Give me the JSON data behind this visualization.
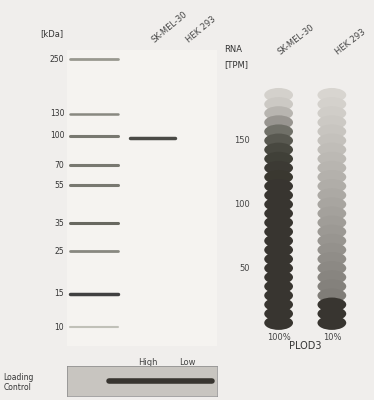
{
  "bg_color": "#f0eeec",
  "wb_bg": "#f5f3f0",
  "ladder_marks": [
    250,
    130,
    100,
    70,
    55,
    35,
    25,
    15,
    10
  ],
  "ladder_mark_colors": [
    "#999990",
    "#888880",
    "#787870",
    "#787870",
    "#787870",
    "#686860",
    "#888880",
    "#404040",
    "#c0c0b8"
  ],
  "ladder_mark_lw": [
    2.0,
    1.8,
    2.2,
    2.2,
    2.2,
    2.2,
    2.0,
    2.5,
    1.5
  ],
  "sample_labels": [
    "SK-MEL-30",
    "HEK 293"
  ],
  "kda_label": "[kDa]",
  "high_low_labels": [
    "High",
    "Low"
  ],
  "loading_control_label": [
    "Loading",
    "Control"
  ],
  "rna_label": [
    "RNA",
    "[TPM]"
  ],
  "rna_col1_label": "SK-MEL-30",
  "rna_col2_label": "HEK 293",
  "rna_pct1": "100%",
  "rna_pct2": "10%",
  "gene_label": "PLOD3",
  "rna_yticks": [
    50,
    100,
    150
  ],
  "rna_n_beads": 26,
  "col1_colors": [
    "#d4d1cc",
    "#ccc9c4",
    "#b8b5b0",
    "#989590",
    "#707068",
    "#585850",
    "#484840",
    "#404038",
    "#3c3a34",
    "#3a3830",
    "#383530",
    "#383530",
    "#383530",
    "#383530",
    "#383530",
    "#383530",
    "#383530",
    "#383530",
    "#383530",
    "#383530",
    "#383530",
    "#383530",
    "#383530",
    "#383530",
    "#383530",
    "#383530"
  ],
  "col2_colors": [
    "#d8d5d0",
    "#d4d1cc",
    "#d0cdc8",
    "#ccc9c4",
    "#c8c5c0",
    "#c4c1bc",
    "#c0bdb8",
    "#bcb9b4",
    "#b8b5b0",
    "#b4b1ac",
    "#b0ada8",
    "#aca9a4",
    "#a8a5a0",
    "#a4a19c",
    "#a09d98",
    "#9c9994",
    "#989590",
    "#94918c",
    "#908d88",
    "#8c8984",
    "#888580",
    "#84817c",
    "#807d78",
    "#383530",
    "#383530",
    "#383530"
  ]
}
